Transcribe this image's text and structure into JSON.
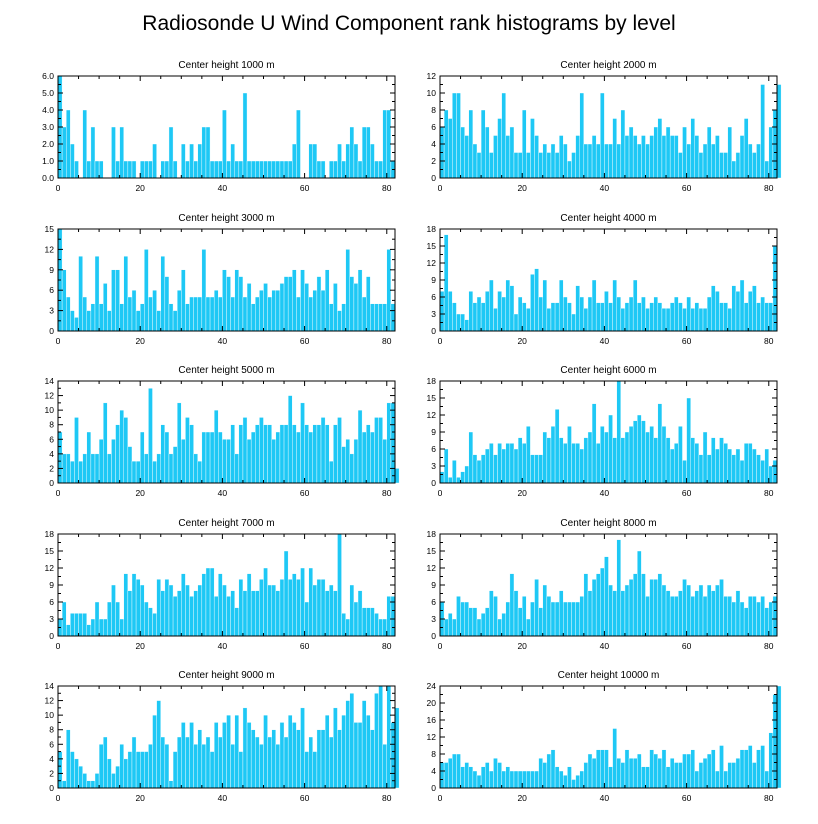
{
  "title": "Radiosonde U Wind Component rank histograms by level",
  "colors": {
    "bar": "#1ec8f5",
    "frame": "#000000",
    "background": "#ffffff"
  },
  "chart_data": [
    {
      "type": "bar",
      "title": "Center height 1000 m",
      "xlim": [
        0,
        82
      ],
      "ylim": [
        0,
        6
      ],
      "xticks": [
        "0",
        "20",
        "40",
        "60",
        "80"
      ],
      "yticks": [
        "0.0",
        "1.0",
        "2.0",
        "3.0",
        "4.0",
        "5.0",
        "6.0"
      ],
      "values": [
        6,
        3,
        4,
        2,
        1,
        0,
        4,
        1,
        3,
        1,
        1,
        0,
        0,
        3,
        1,
        3,
        1,
        1,
        1,
        0,
        1,
        1,
        1,
        2,
        0,
        1,
        1,
        3,
        1,
        0,
        2,
        1,
        2,
        1,
        2,
        3,
        3,
        1,
        1,
        1,
        4,
        1,
        2,
        1,
        1,
        5,
        1,
        1,
        1,
        1,
        1,
        1,
        1,
        1,
        1,
        1,
        1,
        2,
        4,
        0,
        0,
        2,
        2,
        1,
        1,
        0,
        1,
        1,
        2,
        1,
        2,
        3,
        2,
        1,
        3,
        3,
        2,
        1,
        1,
        4,
        4,
        1
      ]
    },
    {
      "type": "bar",
      "title": "Center height 2000 m",
      "xlim": [
        0,
        82
      ],
      "ylim": [
        0,
        12
      ],
      "xticks": [
        "0",
        "20",
        "40",
        "60",
        "80"
      ],
      "yticks": [
        "0",
        "2",
        "4",
        "6",
        "8",
        "10",
        "12"
      ],
      "values": [
        6,
        8,
        7,
        10,
        10,
        6,
        5,
        8,
        4,
        3,
        8,
        6,
        3,
        5,
        7,
        10,
        5,
        6,
        3,
        3,
        8,
        3,
        7,
        5,
        3,
        4,
        3,
        4,
        3,
        5,
        4,
        2,
        3,
        5,
        10,
        4,
        4,
        5,
        4,
        10,
        4,
        4,
        7,
        4,
        8,
        5,
        6,
        5,
        4,
        5,
        4,
        5,
        6,
        7,
        5,
        6,
        5,
        5,
        3,
        6,
        4,
        7,
        5,
        3,
        4,
        6,
        4,
        5,
        3,
        3,
        6,
        2,
        3,
        5,
        7,
        4,
        3,
        4,
        11,
        2,
        6,
        8,
        11
      ]
    },
    {
      "type": "bar",
      "title": "Center height 3000 m",
      "xlim": [
        0,
        82
      ],
      "ylim": [
        0,
        15
      ],
      "xticks": [
        "0",
        "20",
        "40",
        "60",
        "80"
      ],
      "yticks": [
        "0",
        "3",
        "6",
        "9",
        "12",
        "15"
      ],
      "values": [
        15,
        9,
        5,
        3,
        2,
        11,
        5,
        3,
        4,
        11,
        4,
        7,
        3,
        9,
        9,
        4,
        11,
        5,
        6,
        3,
        4,
        12,
        5,
        6,
        3,
        11,
        8,
        4,
        3,
        6,
        9,
        4,
        5,
        5,
        5,
        12,
        5,
        5,
        6,
        5,
        9,
        8,
        5,
        9,
        8,
        5,
        7,
        4,
        5,
        6,
        7,
        5,
        6,
        6,
        7,
        8,
        8,
        9,
        5,
        9,
        7,
        5,
        6,
        8,
        6,
        9,
        4,
        7,
        3,
        4,
        12,
        8,
        7,
        9,
        5,
        8,
        4,
        4,
        4,
        4,
        12,
        4
      ]
    },
    {
      "type": "bar",
      "title": "Center height 4000 m",
      "xlim": [
        0,
        82
      ],
      "ylim": [
        0,
        18
      ],
      "xticks": [
        "0",
        "20",
        "40",
        "60",
        "80"
      ],
      "yticks": [
        "0",
        "3",
        "6",
        "9",
        "12",
        "15",
        "18"
      ],
      "values": [
        7,
        17,
        7,
        5,
        3,
        3,
        2,
        7,
        5,
        6,
        5,
        7,
        9,
        4,
        7,
        6,
        9,
        8,
        3,
        6,
        5,
        4,
        10,
        11,
        6,
        9,
        4,
        5,
        5,
        9,
        6,
        5,
        3,
        8,
        6,
        4,
        6,
        9,
        5,
        5,
        7,
        5,
        9,
        6,
        4,
        5,
        6,
        9,
        5,
        6,
        4,
        5,
        6,
        5,
        4,
        4,
        5,
        6,
        5,
        4,
        6,
        4,
        5,
        4,
        4,
        6,
        8,
        7,
        5,
        5,
        4,
        8,
        7,
        9,
        5,
        7,
        8,
        5,
        6,
        5,
        5,
        15
      ]
    },
    {
      "type": "bar",
      "title": "Center height 5000 m",
      "xlim": [
        0,
        82
      ],
      "ylim": [
        0,
        14
      ],
      "xticks": [
        "0",
        "20",
        "40",
        "60",
        "80"
      ],
      "yticks": [
        "0",
        "2",
        "4",
        "6",
        "8",
        "10",
        "12",
        "14"
      ],
      "values": [
        7,
        4,
        4,
        3,
        9,
        3,
        4,
        7,
        4,
        4,
        6,
        11,
        4,
        6,
        8,
        10,
        9,
        5,
        3,
        3,
        7,
        4,
        13,
        3,
        4,
        8,
        7,
        4,
        5,
        11,
        6,
        9,
        8,
        4,
        3,
        7,
        7,
        7,
        10,
        7,
        6,
        6,
        8,
        4,
        8,
        9,
        6,
        7,
        8,
        9,
        8,
        8,
        6,
        7,
        8,
        8,
        12,
        8,
        7,
        11,
        8,
        7,
        8,
        8,
        9,
        8,
        3,
        8,
        9,
        5,
        6,
        4,
        6,
        10,
        7,
        8,
        7,
        9,
        9,
        6,
        11,
        11,
        2
      ]
    },
    {
      "type": "bar",
      "title": "Center height 6000 m",
      "xlim": [
        0,
        82
      ],
      "ylim": [
        0,
        18
      ],
      "xticks": [
        "0",
        "20",
        "40",
        "60",
        "80"
      ],
      "yticks": [
        "0",
        "3",
        "6",
        "9",
        "12",
        "15",
        "18"
      ],
      "values": [
        2,
        6,
        1,
        4,
        1,
        2,
        3,
        9,
        5,
        4,
        5,
        6,
        7,
        5,
        7,
        6,
        7,
        7,
        6,
        8,
        7,
        10,
        5,
        5,
        5,
        9,
        8,
        10,
        13,
        8,
        7,
        10,
        7,
        7,
        6,
        8,
        9,
        14,
        7,
        10,
        9,
        12,
        8,
        18,
        8,
        9,
        10,
        11,
        12,
        11,
        9,
        10,
        8,
        14,
        10,
        8,
        6,
        7,
        10,
        4,
        15,
        8,
        7,
        5,
        9,
        5,
        8,
        6,
        8,
        7,
        6,
        5,
        6,
        4,
        7,
        7,
        6,
        5,
        4,
        6,
        3,
        4
      ]
    },
    {
      "type": "bar",
      "title": "Center height 7000 m",
      "xlim": [
        0,
        82
      ],
      "ylim": [
        0,
        18
      ],
      "xticks": [
        "0",
        "20",
        "40",
        "60",
        "80"
      ],
      "yticks": [
        "0",
        "3",
        "6",
        "9",
        "12",
        "15",
        "18"
      ],
      "values": [
        3,
        6,
        2,
        4,
        4,
        4,
        4,
        2,
        3,
        6,
        3,
        3,
        6,
        9,
        6,
        3,
        11,
        8,
        11,
        10,
        9,
        6,
        5,
        4,
        10,
        8,
        10,
        9,
        7,
        8,
        11,
        9,
        7,
        8,
        9,
        11,
        12,
        12,
        7,
        11,
        9,
        7,
        8,
        5,
        10,
        8,
        11,
        8,
        8,
        10,
        12,
        9,
        9,
        8,
        10,
        15,
        10,
        11,
        10,
        12,
        6,
        12,
        9,
        10,
        10,
        8,
        9,
        8,
        18,
        4,
        3,
        9,
        6,
        8,
        5,
        5,
        5,
        4,
        3,
        3,
        7,
        7
      ]
    },
    {
      "type": "bar",
      "title": "Center height 8000 m",
      "xlim": [
        0,
        82
      ],
      "ylim": [
        0,
        18
      ],
      "xticks": [
        "0",
        "20",
        "40",
        "60",
        "80"
      ],
      "yticks": [
        "0",
        "3",
        "6",
        "9",
        "12",
        "15",
        "18"
      ],
      "values": [
        6,
        3,
        4,
        3,
        7,
        6,
        6,
        5,
        5,
        3,
        4,
        5,
        8,
        7,
        3,
        4,
        6,
        11,
        8,
        5,
        7,
        3,
        6,
        10,
        5,
        9,
        7,
        6,
        6,
        8,
        6,
        6,
        6,
        6,
        7,
        11,
        8,
        10,
        11,
        12,
        14,
        9,
        8,
        17,
        8,
        9,
        10,
        11,
        15,
        11,
        7,
        10,
        10,
        11,
        9,
        8,
        7,
        7,
        8,
        10,
        9,
        7,
        8,
        9,
        7,
        9,
        8,
        9,
        10,
        7,
        7,
        6,
        8,
        6,
        5,
        7,
        7,
        6,
        7,
        5,
        6,
        7
      ]
    },
    {
      "type": "bar",
      "title": "Center height 9000 m",
      "xlim": [
        0,
        82
      ],
      "ylim": [
        0,
        14
      ],
      "xticks": [
        "0",
        "20",
        "40",
        "60",
        "80"
      ],
      "yticks": [
        "0",
        "2",
        "4",
        "6",
        "8",
        "10",
        "12",
        "14"
      ],
      "values": [
        5,
        1,
        8,
        5,
        4,
        3,
        2,
        1,
        1,
        2,
        6,
        7,
        4,
        2,
        3,
        6,
        4,
        5,
        7,
        5,
        5,
        5,
        6,
        10,
        12,
        7,
        6,
        1,
        5,
        7,
        9,
        7,
        9,
        6,
        8,
        6,
        7,
        5,
        9,
        7,
        9,
        10,
        6,
        10,
        5,
        11,
        9,
        8,
        7,
        6,
        10,
        7,
        8,
        6,
        9,
        7,
        10,
        9,
        8,
        11,
        5,
        7,
        5,
        8,
        8,
        10,
        7,
        11,
        8,
        10,
        12,
        13,
        9,
        9,
        12,
        10,
        8,
        13,
        14,
        6,
        14,
        9,
        11
      ]
    },
    {
      "type": "bar",
      "title": "Center height 10000 m",
      "xlim": [
        0,
        82
      ],
      "ylim": [
        0,
        24
      ],
      "xticks": [
        "0",
        "20",
        "40",
        "60",
        "80"
      ],
      "yticks": [
        "0",
        "4",
        "8",
        "12",
        "16",
        "20",
        "24"
      ],
      "values": [
        6,
        6,
        7,
        8,
        8,
        5,
        6,
        5,
        4,
        3,
        5,
        6,
        4,
        7,
        6,
        4,
        5,
        4,
        4,
        4,
        4,
        4,
        4,
        4,
        7,
        6,
        8,
        9,
        5,
        4,
        3,
        5,
        2,
        3,
        4,
        6,
        8,
        7,
        9,
        9,
        9,
        5,
        14,
        7,
        6,
        9,
        7,
        7,
        8,
        5,
        5,
        9,
        8,
        7,
        9,
        5,
        7,
        6,
        6,
        8,
        8,
        9,
        4,
        6,
        7,
        8,
        9,
        4,
        10,
        4,
        6,
        6,
        7,
        9,
        9,
        10,
        6,
        9,
        10,
        4,
        13,
        22,
        24
      ]
    }
  ]
}
